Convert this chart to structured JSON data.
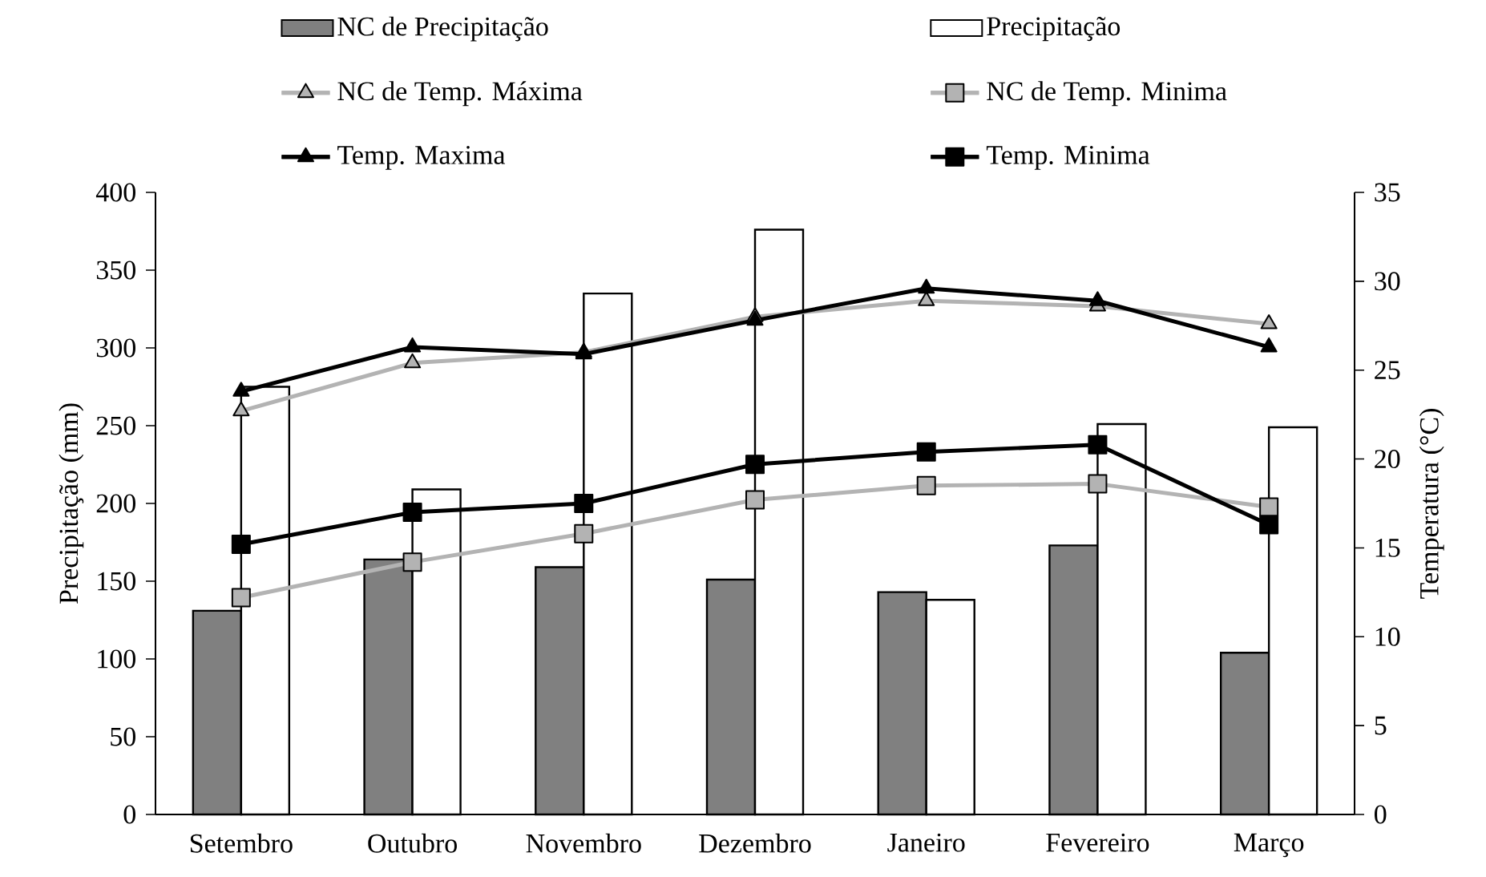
{
  "chart_data": {
    "type": "bar",
    "categories": [
      "Setembro",
      "Outubro",
      "Novembro",
      "Dezembro",
      "Janeiro",
      "Fevereiro",
      "Março"
    ],
    "ylabel": "Precipitação (mm)",
    "y2label": "Temperatura (°C)",
    "ylim": [
      0,
      400
    ],
    "yticks": [
      0,
      50,
      100,
      150,
      200,
      250,
      300,
      350,
      400
    ],
    "y2lim": [
      0,
      35
    ],
    "y2ticks": [
      0,
      5,
      10,
      15,
      20,
      25,
      30,
      35
    ],
    "legend": "top",
    "series": [
      {
        "name": "NC de Precipitação",
        "type": "bar",
        "color": "#808080",
        "values": [
          131,
          164,
          159,
          151,
          143,
          173,
          104
        ]
      },
      {
        "name": "Precipitação",
        "type": "bar",
        "color": "#ffffff",
        "values": [
          275,
          209,
          335,
          376,
          138,
          251,
          249
        ]
      },
      {
        "name": "NC de Temp. Máxima",
        "type": "line",
        "axis": "y2",
        "color": "#b3b3b3",
        "marker": "triangle",
        "values": [
          22.7,
          25.4,
          26.0,
          28.0,
          28.9,
          28.6,
          27.6
        ]
      },
      {
        "name": "NC de Temp. Minima",
        "type": "line",
        "axis": "y2",
        "color": "#b3b3b3",
        "marker": "square",
        "values": [
          12.2,
          14.2,
          15.8,
          17.7,
          18.5,
          18.6,
          17.3
        ]
      },
      {
        "name": "Temp. Maxima",
        "type": "line",
        "axis": "y2",
        "color": "#000000",
        "marker": "triangle",
        "values": [
          23.8,
          26.3,
          25.9,
          27.8,
          29.6,
          28.9,
          26.3
        ]
      },
      {
        "name": "Temp. Minima",
        "type": "line",
        "axis": "y2",
        "color": "#000000",
        "marker": "square",
        "values": [
          15.2,
          17.0,
          17.5,
          19.7,
          20.4,
          20.8,
          16.3
        ]
      }
    ]
  }
}
